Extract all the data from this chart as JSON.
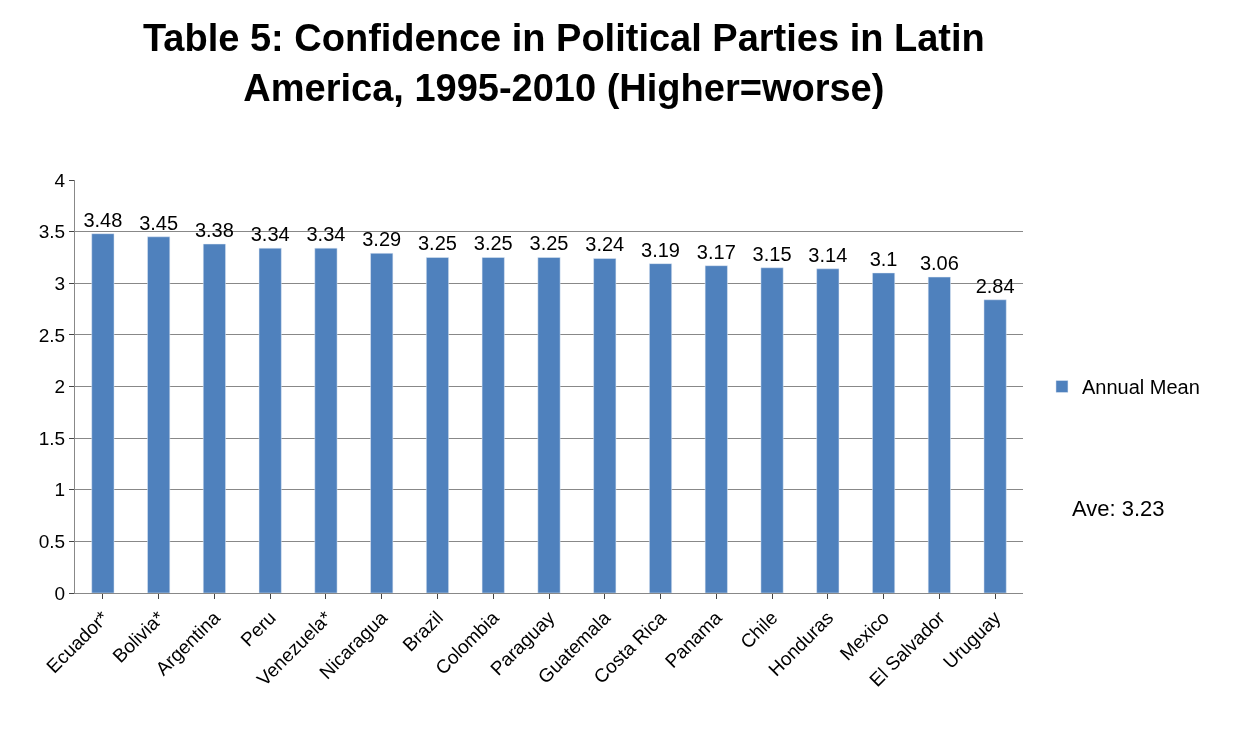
{
  "chart_data": {
    "type": "bar",
    "title": "Table 5: Confidence in Political Parties in Latin America, 1995-2010 (Higher=worse)",
    "categories": [
      "Ecuador*",
      "Bolivia*",
      "Argentina",
      "Peru",
      "Venezuela*",
      "Nicaragua",
      "Brazil",
      "Colombia",
      "Paraguay",
      "Guatemala",
      "Costa Rica",
      "Panama",
      "Chile",
      "Honduras",
      "Mexico",
      "El Salvador",
      "Uruguay"
    ],
    "series": [
      {
        "name": "Annual Mean",
        "color": "#4f81bd",
        "values": [
          3.48,
          3.45,
          3.38,
          3.34,
          3.34,
          3.29,
          3.25,
          3.25,
          3.25,
          3.24,
          3.19,
          3.17,
          3.15,
          3.14,
          3.1,
          3.06,
          2.84
        ]
      }
    ],
    "ylim": [
      0,
      4
    ],
    "yticks": [
      0,
      0.5,
      1,
      1.5,
      2,
      2.5,
      3,
      3.5,
      4
    ],
    "grid": "y",
    "legend": "right",
    "data_labels": true,
    "annotations": [
      "Ave: 3.23"
    ]
  }
}
